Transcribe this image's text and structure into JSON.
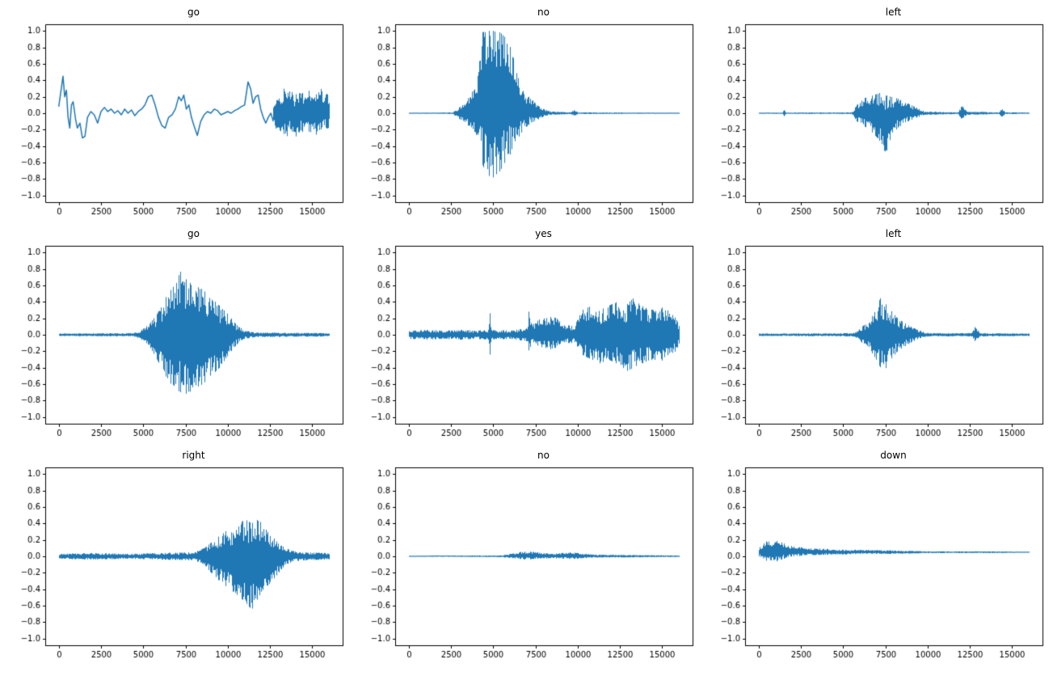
{
  "figure": {
    "background": "#ffffff",
    "line_color": "#1f77b4",
    "rows": 3,
    "cols": 3
  },
  "axes": {
    "xlim": [
      -800,
      16800
    ],
    "ylim": [
      -1.08,
      1.08
    ],
    "xticks": [
      0,
      2500,
      5000,
      7500,
      10000,
      12500,
      15000
    ],
    "xtick_labels": [
      "0",
      "2500",
      "5000",
      "7500",
      "10000",
      "12500",
      "15000"
    ],
    "yticks": [
      1.0,
      0.8,
      0.6,
      0.4,
      0.2,
      0.0,
      -0.2,
      -0.4,
      -0.6,
      -0.8,
      -1.0
    ],
    "ytick_labels": [
      "1.0",
      "0.8",
      "0.6",
      "0.4",
      "0.2",
      "0.0",
      "−0.2",
      "−0.4",
      "−0.6",
      "−0.8",
      "−1.0"
    ],
    "grid": false,
    "xlabel": "",
    "ylabel": ""
  },
  "chart_data": [
    {
      "type": "line",
      "title": "go",
      "x_range": [
        0,
        16000
      ],
      "ylim": [
        -1.0,
        1.0
      ],
      "style": "smooth-noise",
      "smooth_path": [
        [
          0,
          0.08
        ],
        [
          150,
          0.3
        ],
        [
          250,
          0.45
        ],
        [
          350,
          0.2
        ],
        [
          450,
          0.28
        ],
        [
          550,
          -0.05
        ],
        [
          650,
          -0.18
        ],
        [
          750,
          0.1
        ],
        [
          850,
          0.14
        ],
        [
          1000,
          -0.08
        ],
        [
          1100,
          -0.18
        ],
        [
          1250,
          -0.12
        ],
        [
          1400,
          -0.3
        ],
        [
          1550,
          -0.28
        ],
        [
          1700,
          -0.05
        ],
        [
          1900,
          0.02
        ],
        [
          2100,
          -0.02
        ],
        [
          2300,
          -0.12
        ],
        [
          2500,
          0.02
        ],
        [
          2700,
          0.07
        ],
        [
          2900,
          0.02
        ],
        [
          3100,
          0.05
        ],
        [
          3300,
          0.0
        ],
        [
          3500,
          0.03
        ],
        [
          3700,
          -0.02
        ],
        [
          3900,
          0.05
        ],
        [
          4100,
          0.0
        ],
        [
          4300,
          0.04
        ],
        [
          4500,
          -0.03
        ],
        [
          4700,
          0.02
        ],
        [
          4900,
          0.05
        ],
        [
          5100,
          0.1
        ],
        [
          5300,
          0.2
        ],
        [
          5500,
          0.22
        ],
        [
          5700,
          0.1
        ],
        [
          5900,
          -0.05
        ],
        [
          6100,
          -0.15
        ],
        [
          6300,
          -0.18
        ],
        [
          6500,
          -0.05
        ],
        [
          6700,
          -0.02
        ],
        [
          6900,
          0.05
        ],
        [
          7100,
          0.2
        ],
        [
          7250,
          0.15
        ],
        [
          7400,
          0.22
        ],
        [
          7550,
          0.05
        ],
        [
          7700,
          0.1
        ],
        [
          7850,
          -0.05
        ],
        [
          8000,
          -0.15
        ],
        [
          8200,
          -0.27
        ],
        [
          8400,
          -0.1
        ],
        [
          8600,
          -0.02
        ],
        [
          8800,
          0.02
        ],
        [
          9000,
          0.0
        ],
        [
          9200,
          0.05
        ],
        [
          9400,
          0.03
        ],
        [
          9600,
          -0.02
        ],
        [
          9800,
          0.0
        ],
        [
          10000,
          0.02
        ],
        [
          10200,
          0.0
        ],
        [
          10400,
          0.03
        ],
        [
          10600,
          0.05
        ],
        [
          10800,
          0.08
        ],
        [
          11000,
          0.1
        ],
        [
          11200,
          0.38
        ],
        [
          11350,
          0.3
        ],
        [
          11500,
          0.12
        ],
        [
          11650,
          0.2
        ],
        [
          11800,
          0.22
        ],
        [
          11950,
          0.05
        ],
        [
          12100,
          -0.05
        ],
        [
          12250,
          -0.12
        ],
        [
          12400,
          -0.05
        ],
        [
          12550,
          0.0
        ],
        [
          12700,
          -0.1
        ]
      ],
      "envelope": [
        [
          12700,
          0.1,
          -0.1
        ],
        [
          12900,
          0.3,
          -0.3
        ],
        [
          13100,
          0.2,
          -0.35
        ],
        [
          13300,
          0.3,
          -0.25
        ],
        [
          13500,
          0.25,
          -0.3
        ],
        [
          13700,
          0.3,
          -0.2
        ],
        [
          13900,
          0.2,
          -0.25
        ],
        [
          14100,
          0.25,
          -0.3
        ],
        [
          14300,
          0.3,
          -0.2
        ],
        [
          14500,
          0.2,
          -0.25
        ],
        [
          14700,
          0.25,
          -0.2
        ],
        [
          14900,
          0.3,
          -0.25
        ],
        [
          15100,
          0.2,
          -0.2
        ],
        [
          15300,
          0.25,
          -0.3
        ],
        [
          15500,
          0.3,
          -0.2
        ],
        [
          15700,
          0.2,
          -0.15
        ],
        [
          15900,
          0.25,
          -0.2
        ],
        [
          16000,
          0.15,
          -0.15
        ]
      ]
    },
    {
      "type": "line",
      "title": "no",
      "x_range": [
        0,
        16000
      ],
      "ylim": [
        -1.0,
        1.0
      ],
      "style": "dense",
      "envelope": [
        [
          0,
          0.005,
          -0.005
        ],
        [
          2600,
          0.01,
          -0.01
        ],
        [
          3000,
          0.08,
          -0.08
        ],
        [
          3500,
          0.18,
          -0.15
        ],
        [
          4000,
          0.35,
          -0.3
        ],
        [
          4300,
          0.98,
          -0.6
        ],
        [
          4600,
          1.0,
          -0.75
        ],
        [
          5000,
          1.0,
          -0.78
        ],
        [
          5400,
          0.98,
          -0.7
        ],
        [
          5800,
          0.9,
          -0.55
        ],
        [
          6200,
          0.7,
          -0.45
        ],
        [
          6500,
          0.45,
          -0.3
        ],
        [
          6800,
          0.25,
          -0.2
        ],
        [
          7200,
          0.18,
          -0.12
        ],
        [
          7600,
          0.1,
          -0.08
        ],
        [
          8000,
          0.05,
          -0.04
        ],
        [
          8400,
          0.02,
          -0.02
        ],
        [
          9600,
          0.01,
          -0.01
        ],
        [
          9800,
          0.05,
          -0.04
        ],
        [
          10000,
          0.01,
          -0.01
        ],
        [
          16000,
          0.005,
          -0.005
        ]
      ]
    },
    {
      "type": "line",
      "title": "left",
      "x_range": [
        0,
        16000
      ],
      "ylim": [
        -1.0,
        1.0
      ],
      "style": "dense",
      "envelope": [
        [
          0,
          0.008,
          -0.008
        ],
        [
          1400,
          0.008,
          -0.008
        ],
        [
          1500,
          0.06,
          -0.05
        ],
        [
          1600,
          0.008,
          -0.008
        ],
        [
          5500,
          0.01,
          -0.01
        ],
        [
          5800,
          0.1,
          -0.1
        ],
        [
          6200,
          0.18,
          -0.15
        ],
        [
          6800,
          0.22,
          -0.25
        ],
        [
          7200,
          0.25,
          -0.35
        ],
        [
          7500,
          0.22,
          -0.5
        ],
        [
          7800,
          0.2,
          -0.3
        ],
        [
          8200,
          0.18,
          -0.18
        ],
        [
          8800,
          0.12,
          -0.1
        ],
        [
          9400,
          0.06,
          -0.05
        ],
        [
          9800,
          0.02,
          -0.02
        ],
        [
          11800,
          0.01,
          -0.01
        ],
        [
          12000,
          0.1,
          -0.08
        ],
        [
          12300,
          0.02,
          -0.02
        ],
        [
          14200,
          0.01,
          -0.01
        ],
        [
          14400,
          0.06,
          -0.05
        ],
        [
          14600,
          0.01,
          -0.01
        ],
        [
          16000,
          0.008,
          -0.008
        ]
      ]
    },
    {
      "type": "line",
      "title": "go",
      "x_range": [
        0,
        16000
      ],
      "ylim": [
        -1.0,
        1.0
      ],
      "style": "dense",
      "envelope": [
        [
          0,
          0.015,
          -0.015
        ],
        [
          4400,
          0.02,
          -0.02
        ],
        [
          4800,
          0.05,
          -0.05
        ],
        [
          5300,
          0.12,
          -0.12
        ],
        [
          5800,
          0.25,
          -0.3
        ],
        [
          6300,
          0.45,
          -0.5
        ],
        [
          6800,
          0.6,
          -0.65
        ],
        [
          7200,
          0.77,
          -0.7
        ],
        [
          7600,
          0.65,
          -0.72
        ],
        [
          8000,
          0.6,
          -0.65
        ],
        [
          8500,
          0.55,
          -0.6
        ],
        [
          9000,
          0.45,
          -0.5
        ],
        [
          9500,
          0.35,
          -0.4
        ],
        [
          10000,
          0.25,
          -0.25
        ],
        [
          10500,
          0.12,
          -0.12
        ],
        [
          11000,
          0.05,
          -0.05
        ],
        [
          11500,
          0.03,
          -0.03
        ],
        [
          16000,
          0.02,
          -0.02
        ]
      ]
    },
    {
      "type": "line",
      "title": "yes",
      "x_range": [
        0,
        16000
      ],
      "ylim": [
        -1.0,
        1.0
      ],
      "style": "dense",
      "envelope": [
        [
          0,
          0.05,
          -0.05
        ],
        [
          1000,
          0.06,
          -0.06
        ],
        [
          2000,
          0.05,
          -0.05
        ],
        [
          3000,
          0.06,
          -0.06
        ],
        [
          4000,
          0.05,
          -0.05
        ],
        [
          4700,
          0.06,
          -0.06
        ],
        [
          4800,
          0.27,
          -0.25
        ],
        [
          4900,
          0.06,
          -0.06
        ],
        [
          6000,
          0.05,
          -0.05
        ],
        [
          7000,
          0.08,
          -0.08
        ],
        [
          7100,
          0.3,
          -0.2
        ],
        [
          7300,
          0.12,
          -0.1
        ],
        [
          7800,
          0.2,
          -0.15
        ],
        [
          8300,
          0.22,
          -0.18
        ],
        [
          8800,
          0.2,
          -0.15
        ],
        [
          9300,
          0.12,
          -0.1
        ],
        [
          9800,
          0.1,
          -0.1
        ],
        [
          10200,
          0.3,
          -0.25
        ],
        [
          10800,
          0.35,
          -0.3
        ],
        [
          11300,
          0.3,
          -0.35
        ],
        [
          11800,
          0.35,
          -0.3
        ],
        [
          12300,
          0.4,
          -0.35
        ],
        [
          12800,
          0.35,
          -0.45
        ],
        [
          13300,
          0.45,
          -0.4
        ],
        [
          13800,
          0.35,
          -0.35
        ],
        [
          14300,
          0.3,
          -0.3
        ],
        [
          14800,
          0.35,
          -0.35
        ],
        [
          15300,
          0.3,
          -0.25
        ],
        [
          15800,
          0.2,
          -0.2
        ],
        [
          16000,
          0.1,
          -0.1
        ]
      ]
    },
    {
      "type": "line",
      "title": "left",
      "x_range": [
        0,
        16000
      ],
      "ylim": [
        -1.0,
        1.0
      ],
      "style": "dense",
      "envelope": [
        [
          0,
          0.015,
          -0.015
        ],
        [
          5600,
          0.02,
          -0.02
        ],
        [
          6000,
          0.08,
          -0.08
        ],
        [
          6400,
          0.15,
          -0.15
        ],
        [
          6800,
          0.25,
          -0.25
        ],
        [
          7200,
          0.45,
          -0.4
        ],
        [
          7400,
          0.4,
          -0.45
        ],
        [
          7800,
          0.3,
          -0.3
        ],
        [
          8200,
          0.2,
          -0.2
        ],
        [
          8800,
          0.12,
          -0.12
        ],
        [
          9400,
          0.06,
          -0.05
        ],
        [
          10000,
          0.02,
          -0.02
        ],
        [
          12600,
          0.02,
          -0.02
        ],
        [
          12800,
          0.1,
          -0.08
        ],
        [
          13100,
          0.02,
          -0.02
        ],
        [
          16000,
          0.015,
          -0.015
        ]
      ]
    },
    {
      "type": "line",
      "title": "right",
      "x_range": [
        0,
        16000
      ],
      "ylim": [
        -1.0,
        1.0
      ],
      "style": "dense",
      "envelope": [
        [
          0,
          0.03,
          -0.03
        ],
        [
          2000,
          0.04,
          -0.04
        ],
        [
          4000,
          0.03,
          -0.03
        ],
        [
          6000,
          0.04,
          -0.04
        ],
        [
          8000,
          0.05,
          -0.05
        ],
        [
          8600,
          0.1,
          -0.1
        ],
        [
          9200,
          0.2,
          -0.25
        ],
        [
          9800,
          0.3,
          -0.35
        ],
        [
          10400,
          0.35,
          -0.45
        ],
        [
          11000,
          0.45,
          -0.55
        ],
        [
          11400,
          0.4,
          -0.65
        ],
        [
          11800,
          0.45,
          -0.5
        ],
        [
          12200,
          0.35,
          -0.4
        ],
        [
          12600,
          0.25,
          -0.3
        ],
        [
          13000,
          0.15,
          -0.2
        ],
        [
          13400,
          0.1,
          -0.1
        ],
        [
          14000,
          0.06,
          -0.06
        ],
        [
          14600,
          0.05,
          -0.05
        ],
        [
          16000,
          0.04,
          -0.04
        ]
      ]
    },
    {
      "type": "line",
      "title": "no",
      "x_range": [
        0,
        16000
      ],
      "ylim": [
        -1.0,
        1.0
      ],
      "style": "dense",
      "envelope": [
        [
          0,
          0.005,
          -0.005
        ],
        [
          1500,
          0.01,
          -0.005
        ],
        [
          5500,
          0.01,
          -0.01
        ],
        [
          6000,
          0.03,
          -0.02
        ],
        [
          6500,
          0.05,
          -0.03
        ],
        [
          7000,
          0.06,
          -0.04
        ],
        [
          7500,
          0.05,
          -0.03
        ],
        [
          8000,
          0.04,
          -0.03
        ],
        [
          8500,
          0.03,
          -0.02
        ],
        [
          9000,
          0.04,
          -0.03
        ],
        [
          9500,
          0.05,
          -0.03
        ],
        [
          10000,
          0.04,
          -0.03
        ],
        [
          10500,
          0.03,
          -0.02
        ],
        [
          11000,
          0.02,
          -0.015
        ],
        [
          16000,
          0.01,
          -0.008
        ]
      ]
    },
    {
      "type": "line",
      "title": "down",
      "x_range": [
        0,
        16000
      ],
      "ylim": [
        -1.0,
        1.0
      ],
      "style": "dense",
      "envelope": [
        [
          0,
          0.1,
          0.0
        ],
        [
          400,
          0.18,
          -0.05
        ],
        [
          800,
          0.2,
          -0.08
        ],
        [
          1200,
          0.18,
          -0.05
        ],
        [
          1600,
          0.15,
          -0.02
        ],
        [
          2000,
          0.12,
          0.0
        ],
        [
          3000,
          0.1,
          0.01
        ],
        [
          4000,
          0.09,
          0.02
        ],
        [
          5000,
          0.08,
          0.02
        ],
        [
          6000,
          0.08,
          0.03
        ],
        [
          8000,
          0.07,
          0.03
        ],
        [
          10000,
          0.06,
          0.04
        ],
        [
          12000,
          0.06,
          0.04
        ],
        [
          14000,
          0.06,
          0.04
        ],
        [
          16000,
          0.055,
          0.045
        ]
      ]
    }
  ]
}
